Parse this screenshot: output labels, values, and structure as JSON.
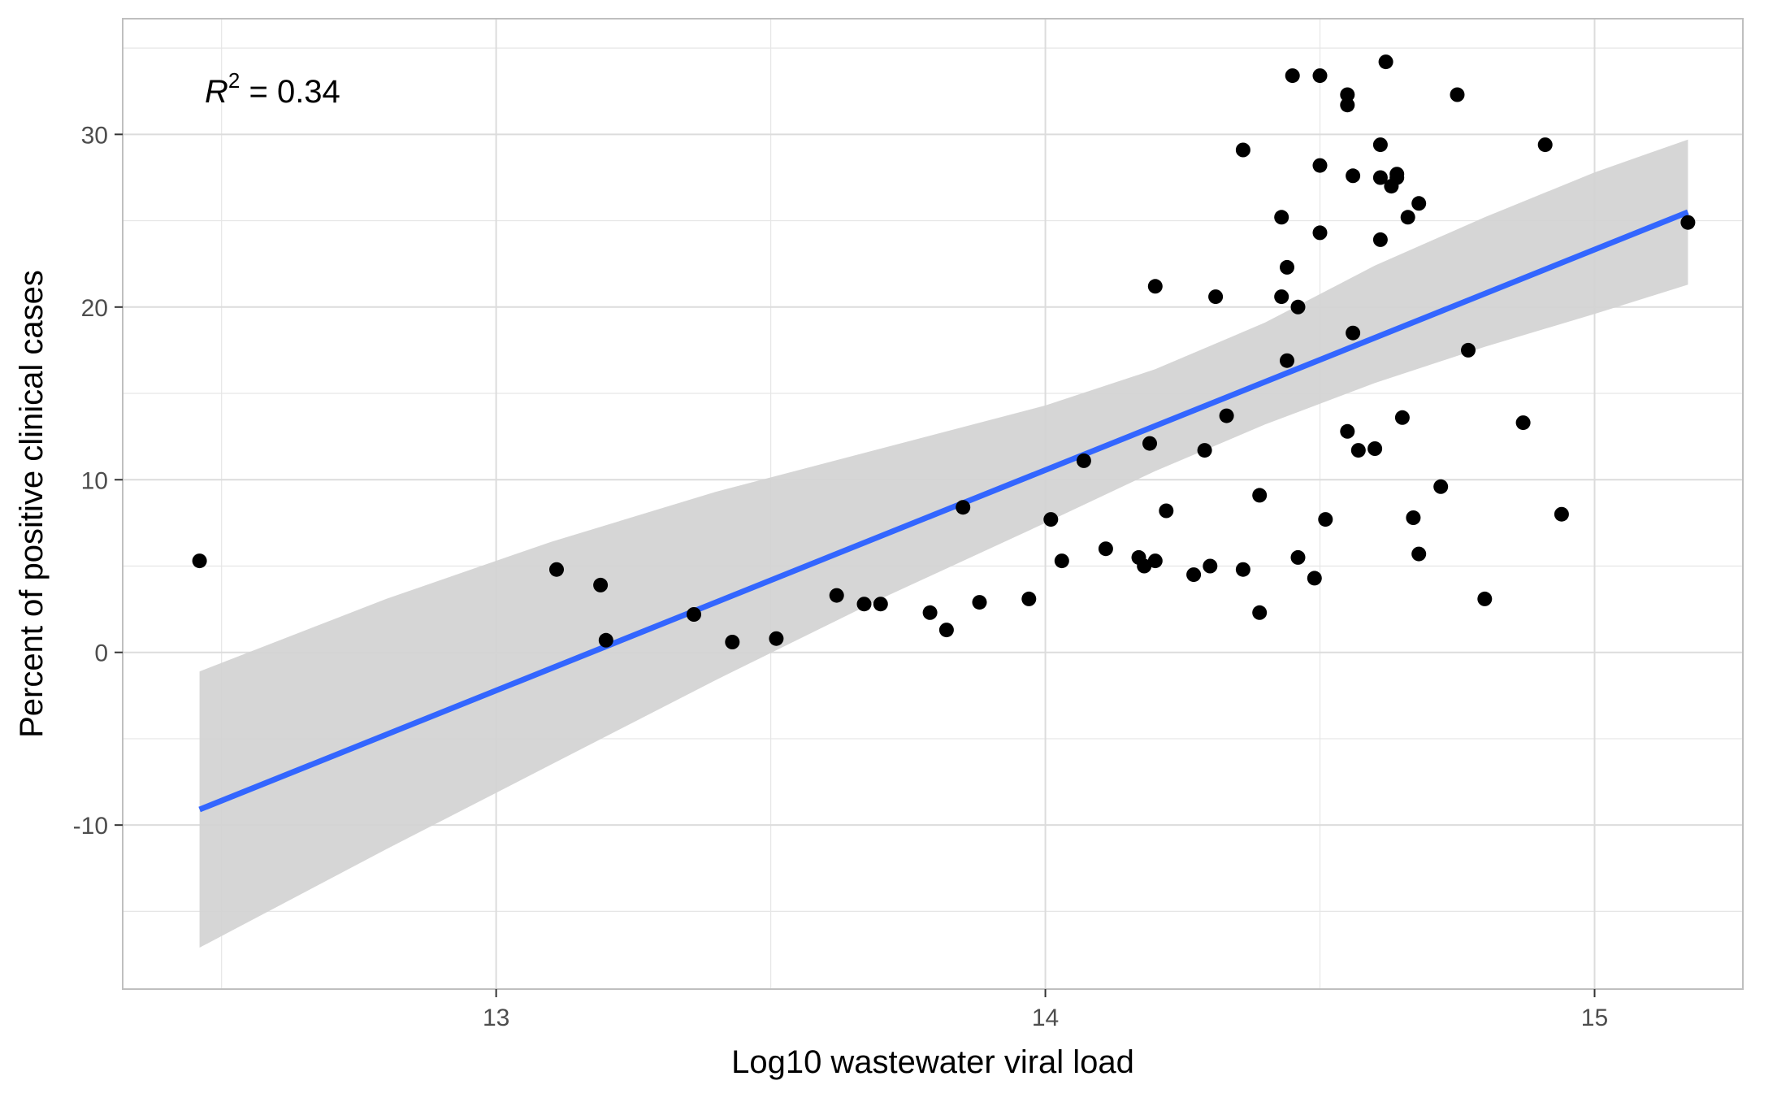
{
  "chart_data": {
    "type": "scatter",
    "xlabel": "Log10 wastewater viral load",
    "ylabel": "Percent of positive clinical cases",
    "xlim": [
      12.32,
      15.27
    ],
    "ylim": [
      -19.5,
      36.7
    ],
    "x_ticks": [
      13,
      14,
      15
    ],
    "y_ticks": [
      -10,
      0,
      10,
      20,
      30
    ],
    "x_tick_labels": [
      "13",
      "14",
      "15"
    ],
    "y_tick_labels": [
      "-10",
      "0",
      "10",
      "20",
      "30"
    ],
    "grid": true,
    "annotation": {
      "base": "R",
      "sup": "2",
      "rest": " = 0.34"
    },
    "colors": {
      "points": "#000000",
      "fit_line": "#3366ff",
      "ribbon": "#d3d3d3",
      "grid": "#e6e6e6",
      "panel_border": "#bfbfbf"
    },
    "points": [
      [
        12.46,
        5.3
      ],
      [
        13.11,
        4.8
      ],
      [
        13.19,
        3.9
      ],
      [
        13.2,
        0.7
      ],
      [
        13.36,
        2.2
      ],
      [
        13.43,
        0.6
      ],
      [
        13.51,
        0.8
      ],
      [
        13.62,
        3.3
      ],
      [
        13.67,
        2.8
      ],
      [
        13.7,
        2.8
      ],
      [
        13.79,
        2.3
      ],
      [
        13.82,
        1.3
      ],
      [
        13.85,
        8.4
      ],
      [
        13.88,
        2.9
      ],
      [
        13.97,
        3.1
      ],
      [
        14.01,
        7.7
      ],
      [
        14.03,
        5.3
      ],
      [
        14.07,
        11.1
      ],
      [
        14.11,
        6.0
      ],
      [
        14.17,
        5.5
      ],
      [
        14.18,
        5.0
      ],
      [
        14.19,
        12.1
      ],
      [
        14.2,
        5.3
      ],
      [
        14.2,
        21.2
      ],
      [
        14.22,
        8.2
      ],
      [
        14.27,
        4.5
      ],
      [
        14.29,
        11.7
      ],
      [
        14.3,
        5.0
      ],
      [
        14.31,
        20.6
      ],
      [
        14.33,
        13.7
      ],
      [
        14.36,
        4.8
      ],
      [
        14.36,
        29.1
      ],
      [
        14.39,
        9.1
      ],
      [
        14.39,
        2.3
      ],
      [
        14.43,
        20.6
      ],
      [
        14.43,
        25.2
      ],
      [
        14.44,
        22.3
      ],
      [
        14.44,
        16.9
      ],
      [
        14.45,
        33.4
      ],
      [
        14.46,
        20.0
      ],
      [
        14.46,
        5.5
      ],
      [
        14.49,
        4.3
      ],
      [
        14.5,
        24.3
      ],
      [
        14.5,
        28.2
      ],
      [
        14.5,
        33.4
      ],
      [
        14.51,
        7.7
      ],
      [
        14.55,
        32.3
      ],
      [
        14.55,
        31.7
      ],
      [
        14.55,
        12.8
      ],
      [
        14.56,
        27.6
      ],
      [
        14.56,
        18.5
      ],
      [
        14.57,
        11.7
      ],
      [
        14.6,
        11.8
      ],
      [
        14.61,
        29.4
      ],
      [
        14.61,
        27.5
      ],
      [
        14.61,
        23.9
      ],
      [
        14.62,
        34.2
      ],
      [
        14.63,
        27.0
      ],
      [
        14.64,
        27.5
      ],
      [
        14.64,
        27.7
      ],
      [
        14.65,
        13.6
      ],
      [
        14.66,
        25.2
      ],
      [
        14.67,
        7.8
      ],
      [
        14.68,
        26.0
      ],
      [
        14.68,
        5.7
      ],
      [
        14.72,
        9.6
      ],
      [
        14.75,
        32.3
      ],
      [
        14.77,
        17.5
      ],
      [
        14.8,
        3.1
      ],
      [
        14.87,
        13.3
      ],
      [
        14.91,
        29.4
      ],
      [
        14.94,
        8.0
      ],
      [
        15.17,
        24.9
      ]
    ],
    "fit": {
      "x": [
        12.46,
        15.17
      ],
      "y": [
        -9.1,
        25.5
      ]
    },
    "ribbon": {
      "x": [
        12.46,
        12.8,
        13.1,
        13.4,
        13.7,
        14.0,
        14.2,
        14.4,
        14.6,
        14.8,
        15.0,
        15.17
      ],
      "lower": [
        -17.1,
        -11.4,
        -6.5,
        -1.6,
        3.1,
        7.5,
        10.5,
        13.2,
        15.6,
        17.7,
        19.6,
        21.3
      ],
      "upper": [
        -1.1,
        3.1,
        6.4,
        9.3,
        11.8,
        14.3,
        16.4,
        19.1,
        22.4,
        25.2,
        27.8,
        29.7
      ]
    }
  }
}
